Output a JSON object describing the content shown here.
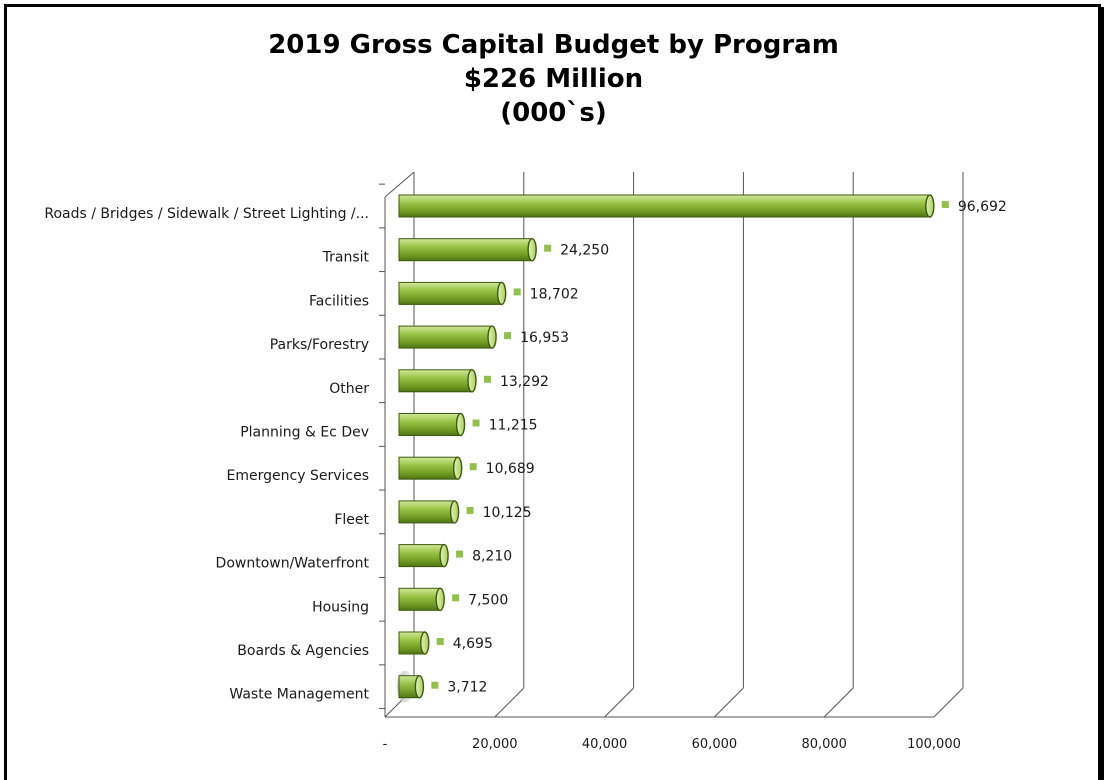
{
  "chart_data": {
    "type": "bar",
    "orientation": "horizontal",
    "title": "2019 Gross Capital Budget by Program",
    "subtitle": "$226 Million",
    "unit_note": "(000`s)",
    "categories": [
      "Roads / Bridges / Sidewalk / Street Lighting /...",
      "Transit",
      "Facilities",
      "Parks/Forestry",
      "Other",
      "Planning & Ec Dev",
      "Emergency Services",
      "Fleet",
      "Downtown/Waterfront",
      "Housing",
      "Boards & Agencies",
      "Waste Management"
    ],
    "values": [
      96692,
      24250,
      18702,
      16953,
      13292,
      11215,
      10689,
      10125,
      8210,
      7500,
      4695,
      3712
    ],
    "value_labels": [
      "96,692",
      "24,250",
      "18,702",
      "16,953",
      "13,292",
      "11,215",
      "10,689",
      "10,125",
      "8,210",
      "7,500",
      "4,695",
      "3,712"
    ],
    "xlim": [
      0,
      100000
    ],
    "x_ticks": [
      0,
      20000,
      40000,
      60000,
      80000,
      100000
    ],
    "x_tick_labels": [
      "-",
      "20,000",
      "40,000",
      "60,000",
      "80,000",
      "100,000"
    ],
    "grid": true,
    "legend": "none",
    "bar_color": "#8db43a",
    "marker_color": "#92c04a"
  }
}
